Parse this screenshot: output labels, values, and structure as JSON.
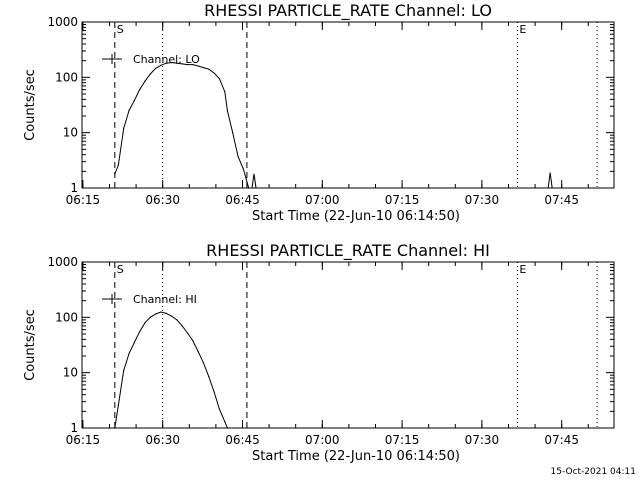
{
  "chart_data": [
    {
      "type": "line",
      "title": "RHESSI PARTICLE_RATE Channel: LO",
      "xlabel": "Start Time (22-Jun-10 06:14:50)",
      "ylabel": "Counts/sec",
      "yscale": "log",
      "xlim": [
        "06:14:50",
        "07:54:50"
      ],
      "ylim": [
        1,
        1000
      ],
      "xticks": [
        "06:15",
        "06:30",
        "06:45",
        "07:00",
        "07:15",
        "07:30",
        "07:45"
      ],
      "yticks": [
        "1",
        "10",
        "100",
        "1000"
      ],
      "legend": {
        "label": "Channel: LO",
        "placement": "top-left"
      },
      "markers": [
        {
          "label": "S",
          "time": "06:21:00",
          "style": "dashed"
        },
        {
          "label": "",
          "time": "06:45:50",
          "style": "dashed"
        },
        {
          "label": "",
          "time": "06:30:00",
          "style": "dotted"
        },
        {
          "label": "E",
          "time": "07:36:40",
          "style": "dotted"
        },
        {
          "label": "",
          "time": "07:51:40",
          "style": "dotted"
        }
      ],
      "series": [
        {
          "name": "Channel: LO",
          "x": [
            "06:21:00",
            "06:21:40",
            "06:22:40",
            "06:23:40",
            "06:24:40",
            "06:25:40",
            "06:26:40",
            "06:27:40",
            "06:28:40",
            "06:29:40",
            "06:30:40",
            "06:31:40",
            "06:32:40",
            "06:33:40",
            "06:34:40",
            "06:35:40",
            "06:36:40",
            "06:37:40",
            "06:38:40",
            "06:39:40",
            "06:40:40",
            "06:41:40",
            "06:42:10",
            "06:43:10",
            "06:44:10",
            "06:45:10",
            "06:45:40",
            "06:46:10"
          ],
          "values": [
            1.8,
            2.6,
            12,
            25,
            38,
            60,
            85,
            115,
            145,
            165,
            180,
            185,
            180,
            175,
            170,
            170,
            160,
            150,
            140,
            120,
            95,
            55,
            25,
            10,
            3.7,
            2.2,
            1.5,
            1
          ],
          "spikes": [
            {
              "x": "06:47:10",
              "y": 1.8
            },
            {
              "x": "07:42:50",
              "y": 1.9
            }
          ]
        }
      ]
    },
    {
      "type": "line",
      "title": "RHESSI PARTICLE_RATE Channel: HI",
      "xlabel": "Start Time (22-Jun-10 06:14:50)",
      "ylabel": "Counts/sec",
      "yscale": "log",
      "xlim": [
        "06:14:50",
        "07:54:50"
      ],
      "ylim": [
        1,
        1000
      ],
      "xticks": [
        "06:15",
        "06:30",
        "06:45",
        "07:00",
        "07:15",
        "07:30",
        "07:45"
      ],
      "yticks": [
        "1",
        "10",
        "100",
        "1000"
      ],
      "legend": {
        "label": "Channel: HI",
        "placement": "top-left"
      },
      "markers": [
        {
          "label": "S",
          "time": "06:21:00",
          "style": "dashed"
        },
        {
          "label": "",
          "time": "06:45:50",
          "style": "dashed"
        },
        {
          "label": "",
          "time": "06:30:00",
          "style": "dotted"
        },
        {
          "label": "E",
          "time": "07:36:40",
          "style": "dotted"
        },
        {
          "label": "",
          "time": "07:51:40",
          "style": "dotted"
        }
      ],
      "series": [
        {
          "name": "Channel: HI",
          "x": [
            "06:21:00",
            "06:21:40",
            "06:22:40",
            "06:23:40",
            "06:24:40",
            "06:25:40",
            "06:26:40",
            "06:27:40",
            "06:28:40",
            "06:29:40",
            "06:30:40",
            "06:31:40",
            "06:32:40",
            "06:33:40",
            "06:34:40",
            "06:35:40",
            "06:36:40",
            "06:37:40",
            "06:38:40",
            "06:39:40",
            "06:40:40",
            "06:41:40",
            "06:42:10"
          ],
          "values": [
            1,
            2.6,
            11,
            22,
            35,
            55,
            80,
            100,
            115,
            125,
            118,
            105,
            90,
            70,
            52,
            38,
            24,
            15,
            8.5,
            4.5,
            2.2,
            1.3,
            1
          ]
        }
      ]
    }
  ],
  "footer": {
    "stamp": "15-Oct-2021 04:11"
  }
}
